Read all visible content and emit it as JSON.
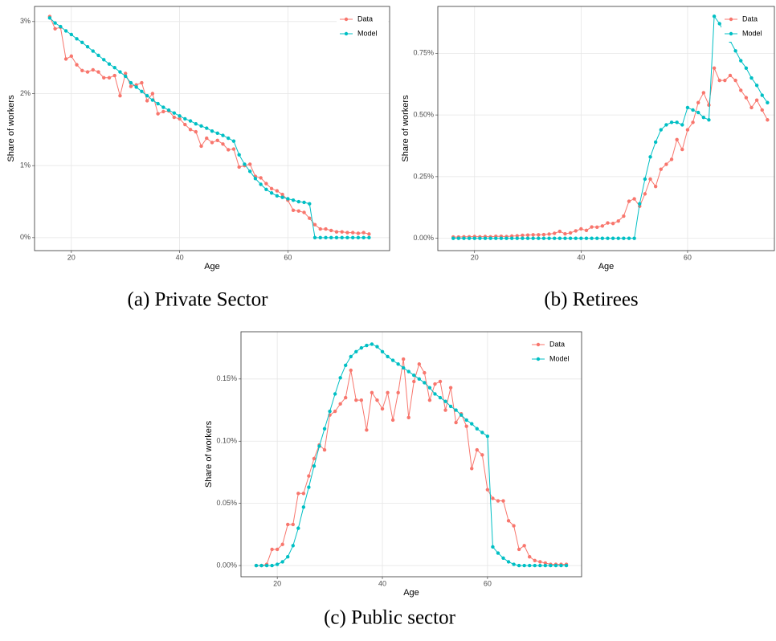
{
  "chart_data": [
    {
      "type": "line",
      "caption": "(a) Private Sector",
      "xlabel": "Age",
      "ylabel": "Share of workers",
      "x": [
        16,
        17,
        18,
        19,
        20,
        21,
        22,
        23,
        24,
        25,
        26,
        27,
        28,
        29,
        30,
        31,
        32,
        33,
        34,
        35,
        36,
        37,
        38,
        39,
        40,
        41,
        42,
        43,
        44,
        45,
        46,
        47,
        48,
        49,
        50,
        51,
        52,
        53,
        54,
        55,
        56,
        57,
        58,
        59,
        60,
        61,
        62,
        63,
        64,
        65,
        66,
        67,
        68,
        69,
        70,
        71,
        72,
        73,
        74,
        75
      ],
      "series": [
        {
          "name": "Data",
          "color": "#F8766D",
          "values": [
            3.07,
            2.9,
            2.92,
            2.48,
            2.52,
            2.4,
            2.32,
            2.3,
            2.33,
            2.3,
            2.22,
            2.22,
            2.25,
            1.97,
            2.28,
            2.1,
            2.12,
            2.15,
            1.9,
            2.0,
            1.72,
            1.75,
            1.76,
            1.67,
            1.65,
            1.57,
            1.5,
            1.47,
            1.27,
            1.38,
            1.32,
            1.35,
            1.3,
            1.22,
            1.23,
            0.98,
            1.0,
            1.02,
            0.85,
            0.83,
            0.75,
            0.68,
            0.65,
            0.6,
            0.52,
            0.38,
            0.37,
            0.35,
            0.27,
            0.18,
            0.12,
            0.12,
            0.1,
            0.08,
            0.08,
            0.07,
            0.07,
            0.06,
            0.07,
            0.05
          ]
        },
        {
          "name": "Model",
          "color": "#00BFC4",
          "values": [
            3.05,
            2.98,
            2.93,
            2.87,
            2.82,
            2.76,
            2.71,
            2.65,
            2.59,
            2.53,
            2.47,
            2.41,
            2.36,
            2.3,
            2.24,
            2.15,
            2.09,
            2.03,
            1.97,
            1.91,
            1.86,
            1.81,
            1.77,
            1.73,
            1.69,
            1.65,
            1.62,
            1.58,
            1.55,
            1.52,
            1.48,
            1.45,
            1.42,
            1.38,
            1.34,
            1.15,
            1.02,
            0.92,
            0.82,
            0.74,
            0.67,
            0.62,
            0.58,
            0.56,
            0.54,
            0.52,
            0.5,
            0.49,
            0.47,
            0,
            0,
            0,
            0,
            0,
            0,
            0,
            0,
            0,
            0,
            0
          ]
        }
      ],
      "xlim": [
        13.2,
        78.8
      ],
      "xticks": [
        20,
        40,
        60
      ],
      "ylim": [
        -0.18,
        3.21
      ],
      "yticks": [
        {
          "value": 0,
          "label": "0%"
        },
        {
          "value": 1,
          "label": "1%"
        },
        {
          "value": 2,
          "label": "2%"
        },
        {
          "value": 3,
          "label": "3%"
        }
      ],
      "grid": true,
      "legend": "top-right"
    },
    {
      "type": "line",
      "caption": "(b) Retirees",
      "xlabel": "Age",
      "ylabel": "Share of workers",
      "x": [
        16,
        17,
        18,
        19,
        20,
        21,
        22,
        23,
        24,
        25,
        26,
        27,
        28,
        29,
        30,
        31,
        32,
        33,
        34,
        35,
        36,
        37,
        38,
        39,
        40,
        41,
        42,
        43,
        44,
        45,
        46,
        47,
        48,
        49,
        50,
        51,
        52,
        53,
        54,
        55,
        56,
        57,
        58,
        59,
        60,
        61,
        62,
        63,
        64,
        65,
        66,
        67,
        68,
        69,
        70,
        71,
        72,
        73,
        74,
        75
      ],
      "series": [
        {
          "name": "Data",
          "color": "#F8766D",
          "values": [
            0.005,
            0.005,
            0.006,
            0.006,
            0.007,
            0.006,
            0.007,
            0.006,
            0.008,
            0.008,
            0.007,
            0.009,
            0.01,
            0.012,
            0.013,
            0.014,
            0.014,
            0.015,
            0.017,
            0.02,
            0.028,
            0.018,
            0.022,
            0.03,
            0.038,
            0.032,
            0.046,
            0.045,
            0.05,
            0.062,
            0.06,
            0.07,
            0.09,
            0.15,
            0.16,
            0.13,
            0.18,
            0.24,
            0.21,
            0.28,
            0.3,
            0.32,
            0.4,
            0.36,
            0.44,
            0.47,
            0.55,
            0.59,
            0.54,
            0.69,
            0.64,
            0.64,
            0.66,
            0.64,
            0.6,
            0.57,
            0.53,
            0.56,
            0.52,
            0.48
          ]
        },
        {
          "name": "Model",
          "color": "#00BFC4",
          "values": [
            0,
            0,
            0,
            0,
            0,
            0,
            0,
            0,
            0,
            0,
            0,
            0,
            0,
            0,
            0,
            0,
            0,
            0,
            0,
            0,
            0,
            0,
            0,
            0,
            0,
            0,
            0,
            0,
            0,
            0,
            0,
            0,
            0,
            0,
            0,
            0.14,
            0.24,
            0.33,
            0.39,
            0.44,
            0.46,
            0.47,
            0.47,
            0.46,
            0.53,
            0.52,
            0.51,
            0.49,
            0.48,
            0.9,
            0.87,
            0.83,
            0.8,
            0.76,
            0.72,
            0.69,
            0.65,
            0.62,
            0.58,
            0.55
          ]
        }
      ],
      "xlim": [
        13.1,
        76.3
      ],
      "xticks": [
        20,
        40,
        60
      ],
      "ylim": [
        -0.05,
        0.94
      ],
      "yticks": [
        {
          "value": 0,
          "label": "0.00%"
        },
        {
          "value": 0.25,
          "label": "0.25%"
        },
        {
          "value": 0.5,
          "label": "0.50%"
        },
        {
          "value": 0.75,
          "label": "0.75%"
        }
      ],
      "grid": true,
      "legend": "top-right"
    },
    {
      "type": "line",
      "caption": "(c) Public sector",
      "xlabel": "Age",
      "ylabel": "Share of workers",
      "x": [
        16,
        17,
        18,
        19,
        20,
        21,
        22,
        23,
        24,
        25,
        26,
        27,
        28,
        29,
        30,
        31,
        32,
        33,
        34,
        35,
        36,
        37,
        38,
        39,
        40,
        41,
        42,
        43,
        44,
        45,
        46,
        47,
        48,
        49,
        50,
        51,
        52,
        53,
        54,
        55,
        56,
        57,
        58,
        59,
        60,
        61,
        62,
        63,
        64,
        65,
        66,
        67,
        68,
        69,
        70,
        71,
        72,
        73,
        74,
        75
      ],
      "series": [
        {
          "name": "Data",
          "color": "#F8766D",
          "values": [
            0,
            0,
            0.001,
            0.013,
            0.013,
            0.017,
            0.033,
            0.033,
            0.058,
            0.058,
            0.072,
            0.086,
            0.097,
            0.093,
            0.121,
            0.124,
            0.13,
            0.135,
            0.157,
            0.133,
            0.133,
            0.109,
            0.139,
            0.133,
            0.126,
            0.139,
            0.117,
            0.139,
            0.166,
            0.119,
            0.148,
            0.162,
            0.155,
            0.133,
            0.146,
            0.148,
            0.125,
            0.143,
            0.115,
            0.122,
            0.112,
            0.078,
            0.093,
            0.089,
            0.061,
            0.054,
            0.052,
            0.052,
            0.036,
            0.032,
            0.013,
            0.016,
            0.007,
            0.004,
            0.003,
            0.002,
            0.001,
            0.001,
            0.001,
            0.001
          ]
        },
        {
          "name": "Model",
          "color": "#00BFC4",
          "values": [
            0,
            0,
            0,
            0,
            0.001,
            0.003,
            0.007,
            0.016,
            0.03,
            0.047,
            0.063,
            0.08,
            0.096,
            0.11,
            0.124,
            0.138,
            0.151,
            0.161,
            0.168,
            0.172,
            0.175,
            0.177,
            0.178,
            0.176,
            0.172,
            0.168,
            0.165,
            0.162,
            0.159,
            0.156,
            0.153,
            0.15,
            0.147,
            0.143,
            0.138,
            0.135,
            0.132,
            0.128,
            0.125,
            0.121,
            0.117,
            0.114,
            0.11,
            0.107,
            0.104,
            0.015,
            0.01,
            0.006,
            0.003,
            0.001,
            0,
            0,
            0,
            0,
            0,
            0,
            0,
            0,
            0,
            0
          ]
        }
      ],
      "xlim": [
        13.1,
        77.9
      ],
      "xticks": [
        20,
        40,
        60
      ],
      "ylim": [
        -0.009,
        0.188
      ],
      "yticks": [
        {
          "value": 0,
          "label": "0.00%"
        },
        {
          "value": 0.05,
          "label": "0.05%"
        },
        {
          "value": 0.1,
          "label": "0.10%"
        },
        {
          "value": 0.15,
          "label": "0.15%"
        }
      ],
      "grid": true,
      "legend": "top-right"
    }
  ]
}
